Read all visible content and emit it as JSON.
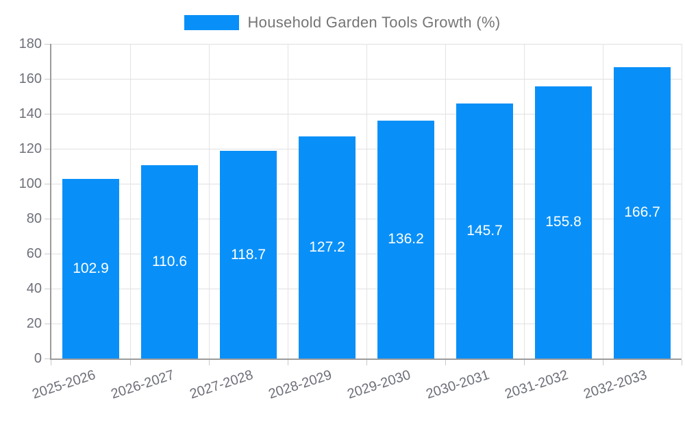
{
  "legend": {
    "label": "Household Garden Tools Growth (%)",
    "swatch_color": "#0990F8"
  },
  "chart_data": {
    "type": "bar",
    "title": "Household Garden Tools Growth (%)",
    "categories": [
      "2025-2026",
      "2026-2027",
      "2027-2028",
      "2028-2029",
      "2029-2030",
      "2030-2031",
      "2031-2032",
      "2032-2033"
    ],
    "values": [
      102.9,
      110.6,
      118.7,
      127.2,
      136.2,
      145.7,
      155.8,
      166.7
    ],
    "value_labels": [
      "102.9",
      "110.6",
      "118.7",
      "127.2",
      "136.2",
      "145.7",
      "155.8",
      "166.7"
    ],
    "xlabel": "",
    "ylabel": "",
    "ylim": [
      0,
      180
    ],
    "ytick_step": 20,
    "ytick_labels": [
      "0",
      "20",
      "40",
      "60",
      "80",
      "100",
      "120",
      "140",
      "160",
      "180"
    ],
    "grid": "horizontal and vertical light-gray gridlines",
    "legend_position": "top-center",
    "bar_color": "#0990F8",
    "value_label_color": "#FFFFFF",
    "axis_label_color": "#6E7079",
    "grid_color": "#E0E0E0",
    "axis_line_color": "#9B9B9B",
    "xlabel_rotation_deg": -18
  }
}
